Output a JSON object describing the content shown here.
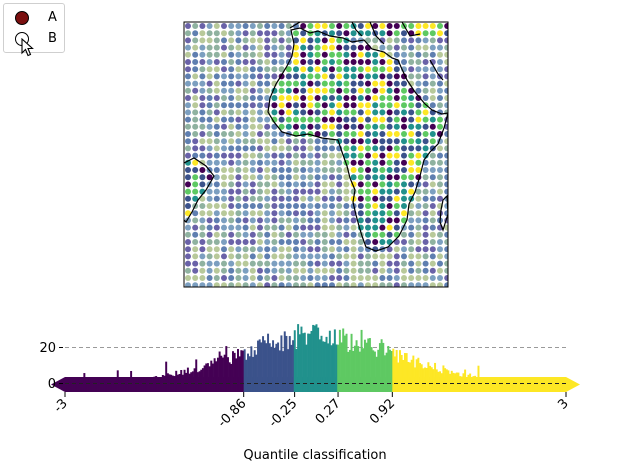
{
  "legend": {
    "items": [
      {
        "label": "A",
        "fill": "#7a0f0f",
        "selected": true
      },
      {
        "label": "B",
        "fill": "#ffffff",
        "selected": false
      }
    ]
  },
  "map": {
    "dot_colors": [
      "#440154",
      "#3b528b",
      "#21918c",
      "#5ec962",
      "#fde725"
    ],
    "ocean_colors": [
      "#5f7fb0",
      "#8fb2a0",
      "#6a62a8",
      "#b8c99a",
      "#7c9fc0"
    ]
  },
  "chart_data": {
    "type": "bar",
    "xlabel": "Quantile classification",
    "ylabel": "",
    "xlim": [
      -3,
      3
    ],
    "ylim": [
      -8,
      33
    ],
    "yticks": [
      0,
      20
    ],
    "ytick_labels": [
      "0",
      "20"
    ],
    "xticks": [
      -3,
      -0.86,
      -0.25,
      0.27,
      0.92,
      3
    ],
    "xtick_labels": [
      "-3",
      "-0.86",
      "-0.25",
      "0.27",
      "0.92",
      "3"
    ],
    "grid": "dashed horizontal at 0 and 20",
    "class_breaks": [
      -3,
      -0.86,
      -0.25,
      0.27,
      0.92,
      3
    ],
    "class_colors": [
      "#440154",
      "#3b528b",
      "#21918c",
      "#5ec962",
      "#fde725"
    ],
    "bin_width": 0.02
  }
}
